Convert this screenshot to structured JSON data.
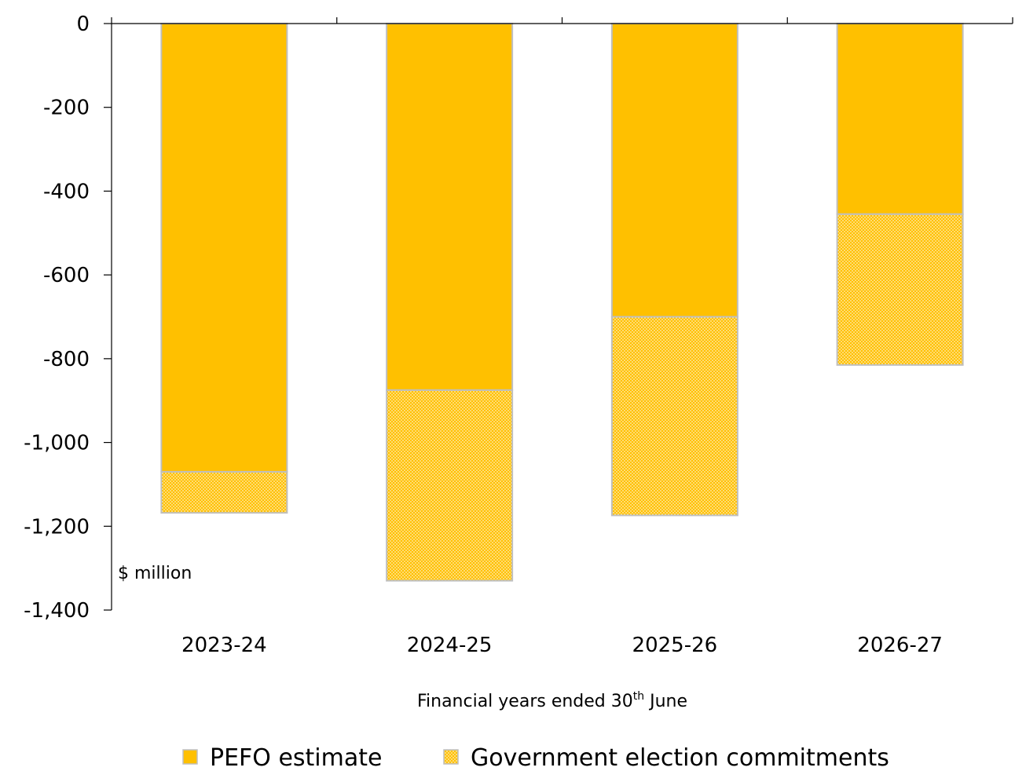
{
  "chart_data": {
    "type": "bar",
    "stacked": true,
    "categories": [
      "2023-24",
      "2024-25",
      "2025-26",
      "2026-27"
    ],
    "series": [
      {
        "name": "PEFO estimate",
        "values": [
          -1070,
          -875,
          -700,
          -455
        ],
        "color": "#FFC000",
        "pattern": "solid"
      },
      {
        "name": "Government election commitments",
        "values": [
          -98,
          -455,
          -474,
          -360
        ],
        "color": "#FFC000",
        "pattern": "dotted"
      }
    ],
    "ylim": [
      -1400,
      0
    ],
    "yticks": [
      0,
      -200,
      -400,
      -600,
      -800,
      -1000,
      -1200,
      -1400
    ],
    "ytick_labels": [
      "0",
      "-200",
      "-400",
      "-600",
      "-800",
      "-1,000",
      "-1,200",
      "-1,400"
    ],
    "y_unit_label": "$ million",
    "xlabel": "Financial years ended 30",
    "xlabel_sup": "th",
    "xlabel_suffix": " June",
    "legend_position": "bottom",
    "grid": false
  }
}
